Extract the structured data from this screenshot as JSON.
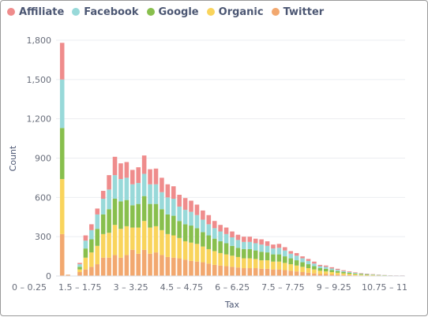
{
  "chart_data": {
    "type": "bar",
    "stacked": true,
    "xlabel": "Tax",
    "ylabel": "Count",
    "ylim": [
      0,
      1800
    ],
    "yticks": [
      0,
      300,
      600,
      900,
      1200,
      1500,
      1800
    ],
    "ytick_labels": [
      "0",
      "300",
      "600",
      "900",
      "1,200",
      "1,500",
      "1,800"
    ],
    "xtick_labels": [
      "0 – 0.25",
      "1.5 – 1.75",
      "3 – 3.25",
      "4.5 – 4.75",
      "6 – 6.25",
      "7.5 – 7.75",
      "9 – 9.25",
      "10.75 – 11"
    ],
    "legend_position": "top-left",
    "grid": true,
    "series": [
      {
        "name": "Affiliate",
        "color": "#ef8c8c",
        "values": [
          280,
          0,
          0,
          10,
          40,
          45,
          45,
          60,
          110,
          140,
          120,
          120,
          110,
          120,
          140,
          115,
          120,
          110,
          100,
          95,
          90,
          90,
          85,
          80,
          70,
          70,
          55,
          50,
          50,
          45,
          40,
          40,
          40,
          35,
          40,
          35,
          30,
          30,
          25,
          20,
          20,
          15,
          15,
          15,
          10,
          10,
          10,
          8,
          6,
          5,
          4,
          3,
          3,
          2,
          2,
          1,
          1,
          1,
          1
        ]
      },
      {
        "name": "Facebook",
        "color": "#98d9d9",
        "values": [
          370,
          0,
          0,
          20,
          60,
          70,
          110,
          120,
          150,
          180,
          170,
          170,
          160,
          160,
          170,
          150,
          150,
          130,
          130,
          130,
          110,
          110,
          105,
          100,
          95,
          85,
          80,
          75,
          70,
          65,
          60,
          55,
          55,
          55,
          55,
          50,
          45,
          50,
          45,
          35,
          35,
          30,
          25,
          20,
          15,
          15,
          12,
          10,
          8,
          6,
          5,
          4,
          3,
          2,
          2,
          1,
          1,
          1,
          1
        ]
      },
      {
        "name": "Google",
        "color": "#88bf4d",
        "values": [
          390,
          0,
          0,
          20,
          70,
          100,
          130,
          150,
          180,
          200,
          210,
          200,
          170,
          180,
          190,
          180,
          170,
          160,
          150,
          150,
          130,
          130,
          130,
          120,
          110,
          105,
          95,
          90,
          85,
          75,
          70,
          70,
          70,
          65,
          65,
          60,
          55,
          55,
          50,
          45,
          40,
          35,
          30,
          25,
          20,
          20,
          15,
          12,
          10,
          8,
          6,
          5,
          4,
          3,
          2,
          2,
          1,
          1,
          1
        ]
      },
      {
        "name": "Organic",
        "color": "#f9d45c",
        "values": [
          420,
          0,
          0,
          20,
          90,
          110,
          140,
          180,
          190,
          230,
          220,
          220,
          170,
          200,
          220,
          200,
          200,
          190,
          175,
          170,
          155,
          140,
          140,
          135,
          120,
          110,
          105,
          95,
          90,
          85,
          80,
          75,
          75,
          70,
          65,
          65,
          60,
          60,
          55,
          50,
          45,
          40,
          35,
          30,
          25,
          20,
          18,
          15,
          12,
          10,
          8,
          6,
          5,
          4,
          3,
          2,
          2,
          1,
          1
        ]
      },
      {
        "name": "Twitter",
        "color": "#f2a86f",
        "values": [
          320,
          10,
          0,
          30,
          50,
          70,
          90,
          140,
          140,
          160,
          140,
          160,
          200,
          170,
          200,
          170,
          180,
          160,
          145,
          140,
          135,
          125,
          115,
          110,
          105,
          95,
          85,
          80,
          75,
          70,
          65,
          60,
          60,
          60,
          55,
          55,
          50,
          50,
          45,
          40,
          35,
          30,
          25,
          20,
          15,
          15,
          12,
          10,
          8,
          6,
          5,
          4,
          3,
          3,
          2,
          2,
          1,
          1,
          1
        ]
      }
    ]
  }
}
